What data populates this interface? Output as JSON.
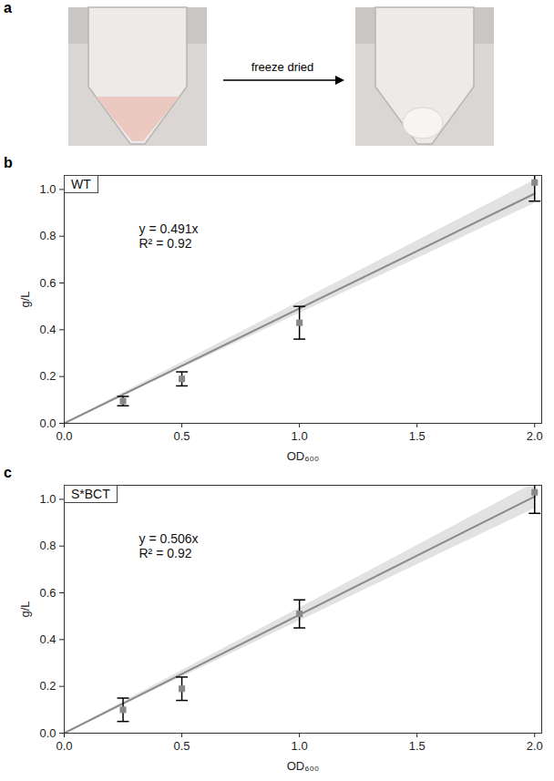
{
  "panel_a": {
    "letter": "a",
    "arrow_label": "freeze dried"
  },
  "chart_data": [
    {
      "type": "scatter",
      "panel": "b",
      "title": "WT",
      "x_label": "OD₆₀₀",
      "y_label": "g/L",
      "x": [
        0.25,
        0.5,
        1.0,
        2.0
      ],
      "values": [
        0.095,
        0.19,
        0.43,
        1.03
      ],
      "errors": [
        0.02,
        0.03,
        0.07,
        0.08
      ],
      "fit_slope": 0.491,
      "confidence_band": {
        "x": [
          0,
          2.0
        ],
        "lower": [
          0,
          0.94
        ],
        "upper": [
          0,
          1.04
        ]
      },
      "annotations": [
        "y = 0.491x",
        "R² = 0.92"
      ],
      "color": "#888888",
      "marker": "square",
      "xlim": [
        0,
        2.03
      ],
      "xticks": [
        {
          "value": 0,
          "label": "0.0"
        },
        {
          "value": 0.5,
          "label": "0.5"
        },
        {
          "value": 1.0,
          "label": "1.0"
        },
        {
          "value": 1.5,
          "label": "1.5"
        },
        {
          "value": 2.0,
          "label": "2.0"
        }
      ],
      "ylim": [
        0,
        1.06
      ],
      "yticks": [
        {
          "value": 0,
          "label": "0.0"
        },
        {
          "value": 0.2,
          "label": "0.2"
        },
        {
          "value": 0.4,
          "label": "0.4"
        },
        {
          "value": 0.6,
          "label": "0.6"
        },
        {
          "value": 0.8,
          "label": "0.8"
        },
        {
          "value": 1.0,
          "label": "1.0"
        }
      ],
      "grid": false
    },
    {
      "type": "scatter",
      "panel": "c",
      "title": "S*BCT",
      "x_label": "OD₆₀₀",
      "y_label": "g/L",
      "x": [
        0.25,
        0.5,
        1.0,
        2.0
      ],
      "values": [
        0.1,
        0.19,
        0.51,
        1.03
      ],
      "errors": [
        0.05,
        0.05,
        0.06,
        0.09
      ],
      "fit_slope": 0.506,
      "confidence_band": {
        "x": [
          0,
          2.0
        ],
        "lower": [
          0,
          0.96
        ],
        "upper": [
          0,
          1.07
        ]
      },
      "annotations": [
        "y = 0.506x",
        "R² = 0.92"
      ],
      "color": "#888888",
      "marker": "square",
      "xlim": [
        0,
        2.03
      ],
      "xticks": [
        {
          "value": 0,
          "label": "0.0"
        },
        {
          "value": 0.5,
          "label": "0.5"
        },
        {
          "value": 1.0,
          "label": "1.0"
        },
        {
          "value": 1.5,
          "label": "1.5"
        },
        {
          "value": 2.0,
          "label": "2.0"
        }
      ],
      "ylim": [
        0,
        1.06
      ],
      "yticks": [
        {
          "value": 0,
          "label": "0.0"
        },
        {
          "value": 0.2,
          "label": "0.2"
        },
        {
          "value": 0.4,
          "label": "0.4"
        },
        {
          "value": 0.6,
          "label": "0.6"
        },
        {
          "value": 0.8,
          "label": "0.8"
        },
        {
          "value": 1.0,
          "label": "1.0"
        }
      ],
      "grid": false
    }
  ]
}
